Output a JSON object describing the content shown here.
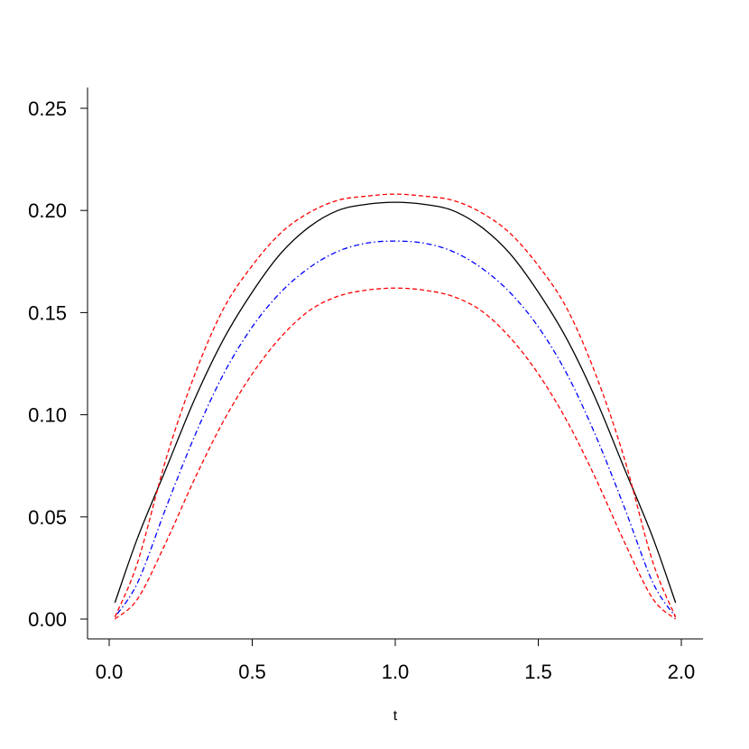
{
  "chart_data": {
    "type": "line",
    "title": "",
    "xlabel": "t",
    "ylabel": "",
    "xlim": [
      0.0,
      2.0
    ],
    "ylim": [
      0.0,
      0.25
    ],
    "xticks": [
      "0.0",
      "0.5",
      "1.0",
      "1.5",
      "2.0"
    ],
    "yticks": [
      "0.00",
      "0.05",
      "0.10",
      "0.15",
      "0.20",
      "0.25"
    ],
    "grid": false,
    "legend": "none",
    "series": [
      {
        "style": "solid",
        "color": "#000000",
        "x": [
          0.02,
          0.1,
          0.2,
          0.3,
          0.4,
          0.5,
          0.6,
          0.7,
          0.8,
          0.9,
          1.0,
          1.1,
          1.2,
          1.3,
          1.4,
          1.5,
          1.6,
          1.7,
          1.8,
          1.9,
          1.98
        ],
        "y": [
          0.008,
          0.04,
          0.074,
          0.108,
          0.137,
          0.16,
          0.179,
          0.192,
          0.2,
          0.203,
          0.204,
          0.203,
          0.2,
          0.192,
          0.179,
          0.16,
          0.137,
          0.108,
          0.074,
          0.04,
          0.008
        ]
      },
      {
        "style": "dotdash",
        "color": "#0000ff",
        "x": [
          0.02,
          0.1,
          0.2,
          0.3,
          0.4,
          0.5,
          0.6,
          0.7,
          0.8,
          0.9,
          1.0,
          1.1,
          1.2,
          1.3,
          1.4,
          1.5,
          1.6,
          1.7,
          1.8,
          1.9,
          1.98
        ],
        "y": [
          0.001,
          0.018,
          0.055,
          0.09,
          0.12,
          0.143,
          0.16,
          0.172,
          0.18,
          0.184,
          0.185,
          0.184,
          0.18,
          0.172,
          0.16,
          0.143,
          0.12,
          0.09,
          0.055,
          0.018,
          0.001
        ]
      },
      {
        "style": "dashed",
        "color": "#ff0000",
        "x": [
          0.02,
          0.1,
          0.2,
          0.3,
          0.4,
          0.5,
          0.6,
          0.7,
          0.8,
          0.9,
          1.0,
          1.1,
          1.2,
          1.3,
          1.4,
          1.5,
          1.6,
          1.7,
          1.8,
          1.9,
          1.98
        ],
        "y": [
          0.001,
          0.028,
          0.079,
          0.12,
          0.152,
          0.173,
          0.189,
          0.199,
          0.205,
          0.207,
          0.208,
          0.207,
          0.205,
          0.199,
          0.189,
          0.173,
          0.152,
          0.12,
          0.079,
          0.028,
          0.001
        ]
      },
      {
        "style": "dashed",
        "color": "#ff0000",
        "x": [
          0.02,
          0.1,
          0.2,
          0.3,
          0.4,
          0.5,
          0.6,
          0.7,
          0.8,
          0.9,
          1.0,
          1.1,
          1.2,
          1.3,
          1.4,
          1.5,
          1.6,
          1.7,
          1.8,
          1.9,
          1.98
        ],
        "y": [
          0.0,
          0.01,
          0.038,
          0.069,
          0.097,
          0.12,
          0.138,
          0.151,
          0.158,
          0.161,
          0.162,
          0.161,
          0.158,
          0.151,
          0.138,
          0.12,
          0.097,
          0.069,
          0.038,
          0.01,
          0.0
        ]
      }
    ]
  }
}
